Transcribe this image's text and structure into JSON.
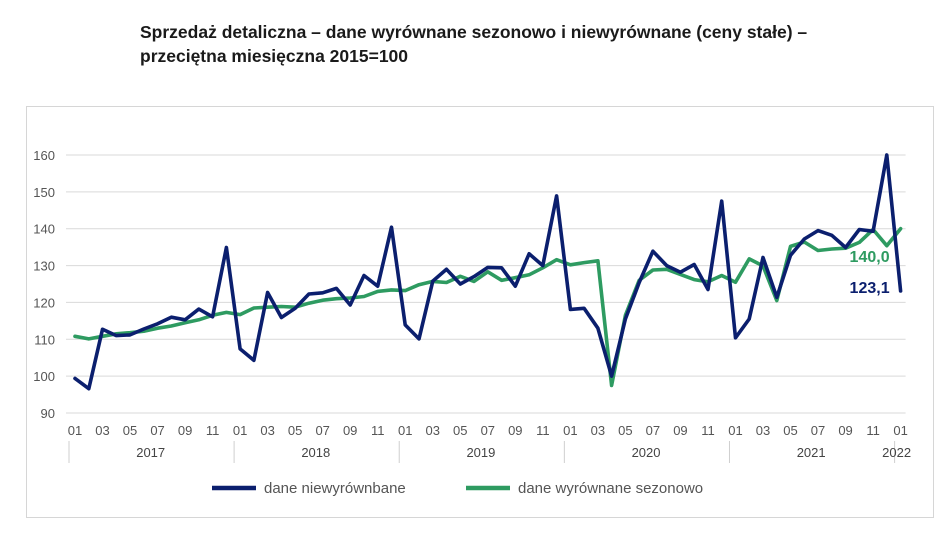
{
  "title": [
    "Sprzedaż detaliczna – dane wyrównane sezonowo i niewyrównane (ceny stałe) –",
    "przeciętna miesięczna 2015=100"
  ],
  "chart_data": {
    "type": "line",
    "title": "Sprzedaż detaliczna – dane wyrównane sezonowo i niewyrównane (ceny stałe) – przeciętna miesięczna 2015=100",
    "ylim": [
      90,
      160
    ],
    "yticks": [
      "90",
      "100",
      "110",
      "120",
      "130",
      "140",
      "150",
      "160"
    ],
    "grid": true,
    "legend": "bottom",
    "x_month_labels": [
      "01",
      "03",
      "05",
      "07",
      "09",
      "11",
      "01",
      "03",
      "05",
      "07",
      "09",
      "11",
      "01",
      "03",
      "05",
      "07",
      "09",
      "11",
      "01",
      "03",
      "05",
      "07",
      "09",
      "11",
      "01",
      "03",
      "05",
      "07",
      "09",
      "11",
      "01"
    ],
    "x_year_labels": [
      "2017",
      "2018",
      "2019",
      "2020",
      "2021",
      "2022"
    ],
    "series": [
      {
        "name": "dane niewyrównbane",
        "color": "#0b1f6e",
        "values": [
          99.4,
          96.6,
          112.7,
          111.0,
          111.2,
          112.8,
          114.2,
          116.0,
          115.3,
          118.2,
          116.1,
          134.9,
          107.4,
          104.3,
          122.7,
          115.9,
          118.4,
          122.3,
          122.6,
          123.8,
          119.3,
          127.3,
          124.4,
          140.4,
          113.9,
          110.1,
          125.8,
          129.0,
          125.0,
          127.0,
          129.5,
          129.4,
          124.4,
          133.2,
          130.0,
          148.9,
          118.1,
          118.4,
          113.0,
          100.0,
          115.5,
          125.4,
          133.9,
          130.0,
          128.2,
          130.3,
          123.5,
          147.5,
          110.4,
          115.5,
          132.2,
          121.4,
          132.8,
          137.2,
          139.5,
          138.2,
          134.9,
          139.8,
          139.3,
          160.0,
          123.1
        ],
        "end_label": "123,1"
      },
      {
        "name": "dane wyrównane sezonowo",
        "color": "#2e9b61",
        "values": [
          110.8,
          110.1,
          110.8,
          111.5,
          111.8,
          112.2,
          113.0,
          113.6,
          114.5,
          115.3,
          116.5,
          117.3,
          116.7,
          118.5,
          118.7,
          118.9,
          118.7,
          119.8,
          120.6,
          121.0,
          121.2,
          121.6,
          123.0,
          123.4,
          123.2,
          124.8,
          125.7,
          125.4,
          127.1,
          125.7,
          128.3,
          126.0,
          126.7,
          127.5,
          129.4,
          131.6,
          130.2,
          130.8,
          131.3,
          97.5,
          116.5,
          126.0,
          128.8,
          129.0,
          127.6,
          126.2,
          125.6,
          127.3,
          125.5,
          131.8,
          129.9,
          120.5,
          135.2,
          136.4,
          134.1,
          134.5,
          134.7,
          136.3,
          139.8,
          135.4,
          140.0
        ],
        "end_label": "140,0"
      }
    ]
  }
}
